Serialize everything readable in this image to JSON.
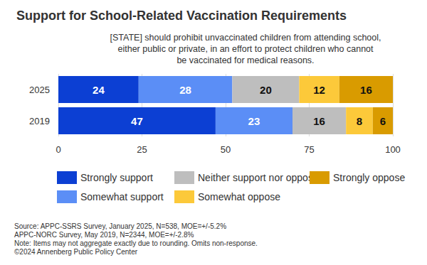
{
  "chart_data": {
    "type": "bar",
    "orientation": "horizontal",
    "stacked": true,
    "data_labels": true,
    "grid": true,
    "legend": "bottom",
    "title": "Support for School-Related Vaccination Requirements",
    "subtitle": "[STATE] should prohibit unvaccinated children from attending school,\neither public or private, in an effort to protect children who cannot\nbe vaccinated for medical reasons.",
    "categories": [
      "2025",
      "2019"
    ],
    "series": [
      {
        "name": "Strongly support",
        "color": "#0c3fd3",
        "values": [
          24,
          47
        ]
      },
      {
        "name": "Somewhat support",
        "color": "#5b8ef6",
        "values": [
          28,
          23
        ]
      },
      {
        "name": "Neither support nor oppose",
        "color": "#bebebe",
        "values": [
          20,
          16
        ]
      },
      {
        "name": "Somewhat oppose",
        "color": "#fcc93a",
        "values": [
          12,
          8
        ]
      },
      {
        "name": "Strongly oppose",
        "color": "#d99b00",
        "values": [
          16,
          6
        ]
      }
    ],
    "xlim": [
      0,
      100
    ],
    "xticks": [
      0,
      25,
      50,
      75,
      100
    ],
    "annotations": [
      "Source: APPC-SSRS Survey, January 2025, N=538, MOE=+/-5.2%",
      "APPC-NORC Survey, May 2019, N=2344, MOE=+/-2.8%",
      "Note: Items may not aggregate exactly due to rounding. Omits non-response.",
      "©2024 Annenberg Public Policy Center"
    ]
  }
}
